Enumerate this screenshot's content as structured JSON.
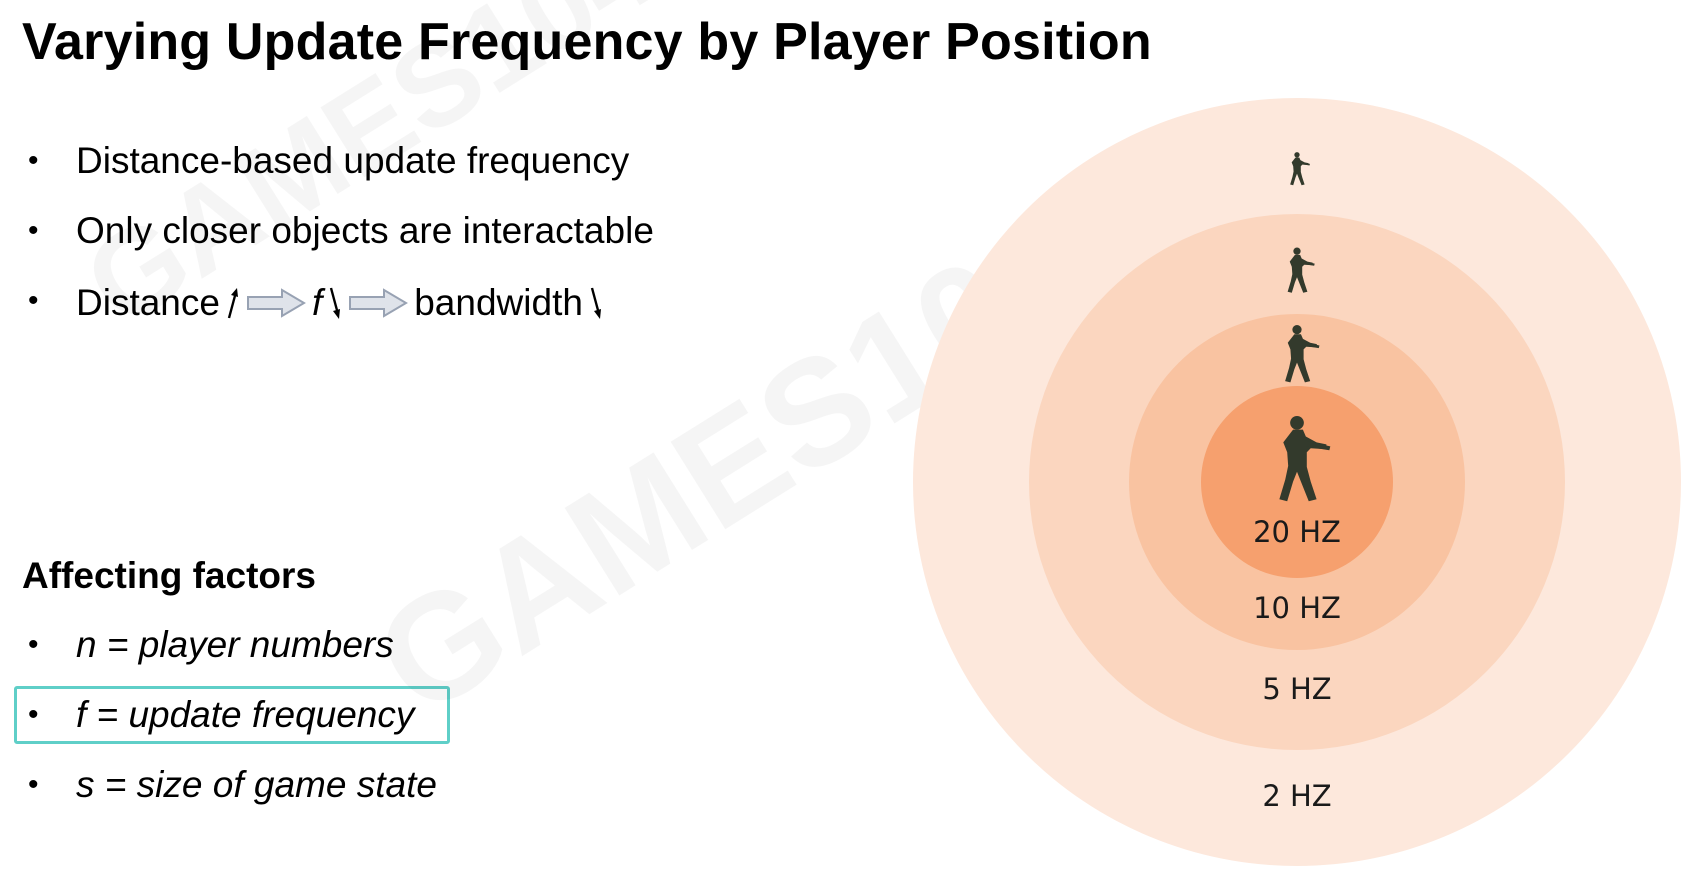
{
  "title": "Varying Update Frequency by Player Position",
  "bullets": [
    "Distance-based update frequency",
    "Only closer objects are interactable"
  ],
  "flow": {
    "items": [
      "Distance",
      "f",
      "bandwidth"
    ],
    "directions": [
      "up",
      "down",
      "down"
    ],
    "bullet_char": "•"
  },
  "factors": {
    "heading": "Affecting factors",
    "items": [
      {
        "text": "n = player numbers",
        "highlighted": false
      },
      {
        "text": "f = update frequency",
        "highlighted": true
      },
      {
        "text": "s = size of game state",
        "highlighted": false
      }
    ]
  },
  "zones": [
    {
      "label": "2 HZ",
      "color": "#fde8dc"
    },
    {
      "label": "5 HZ",
      "color": "#fbd6bf"
    },
    {
      "label": "10 HZ",
      "color": "#f9c3a1"
    },
    {
      "label": "20 HZ",
      "color": "#f6a06e"
    }
  ],
  "watermark": "GAMES104",
  "colors": {
    "highlight_border": "#5fcfc8",
    "arrow_fill": "#dfe3ea",
    "arrow_stroke": "#98a2b3",
    "soldier": "#333a2c"
  }
}
